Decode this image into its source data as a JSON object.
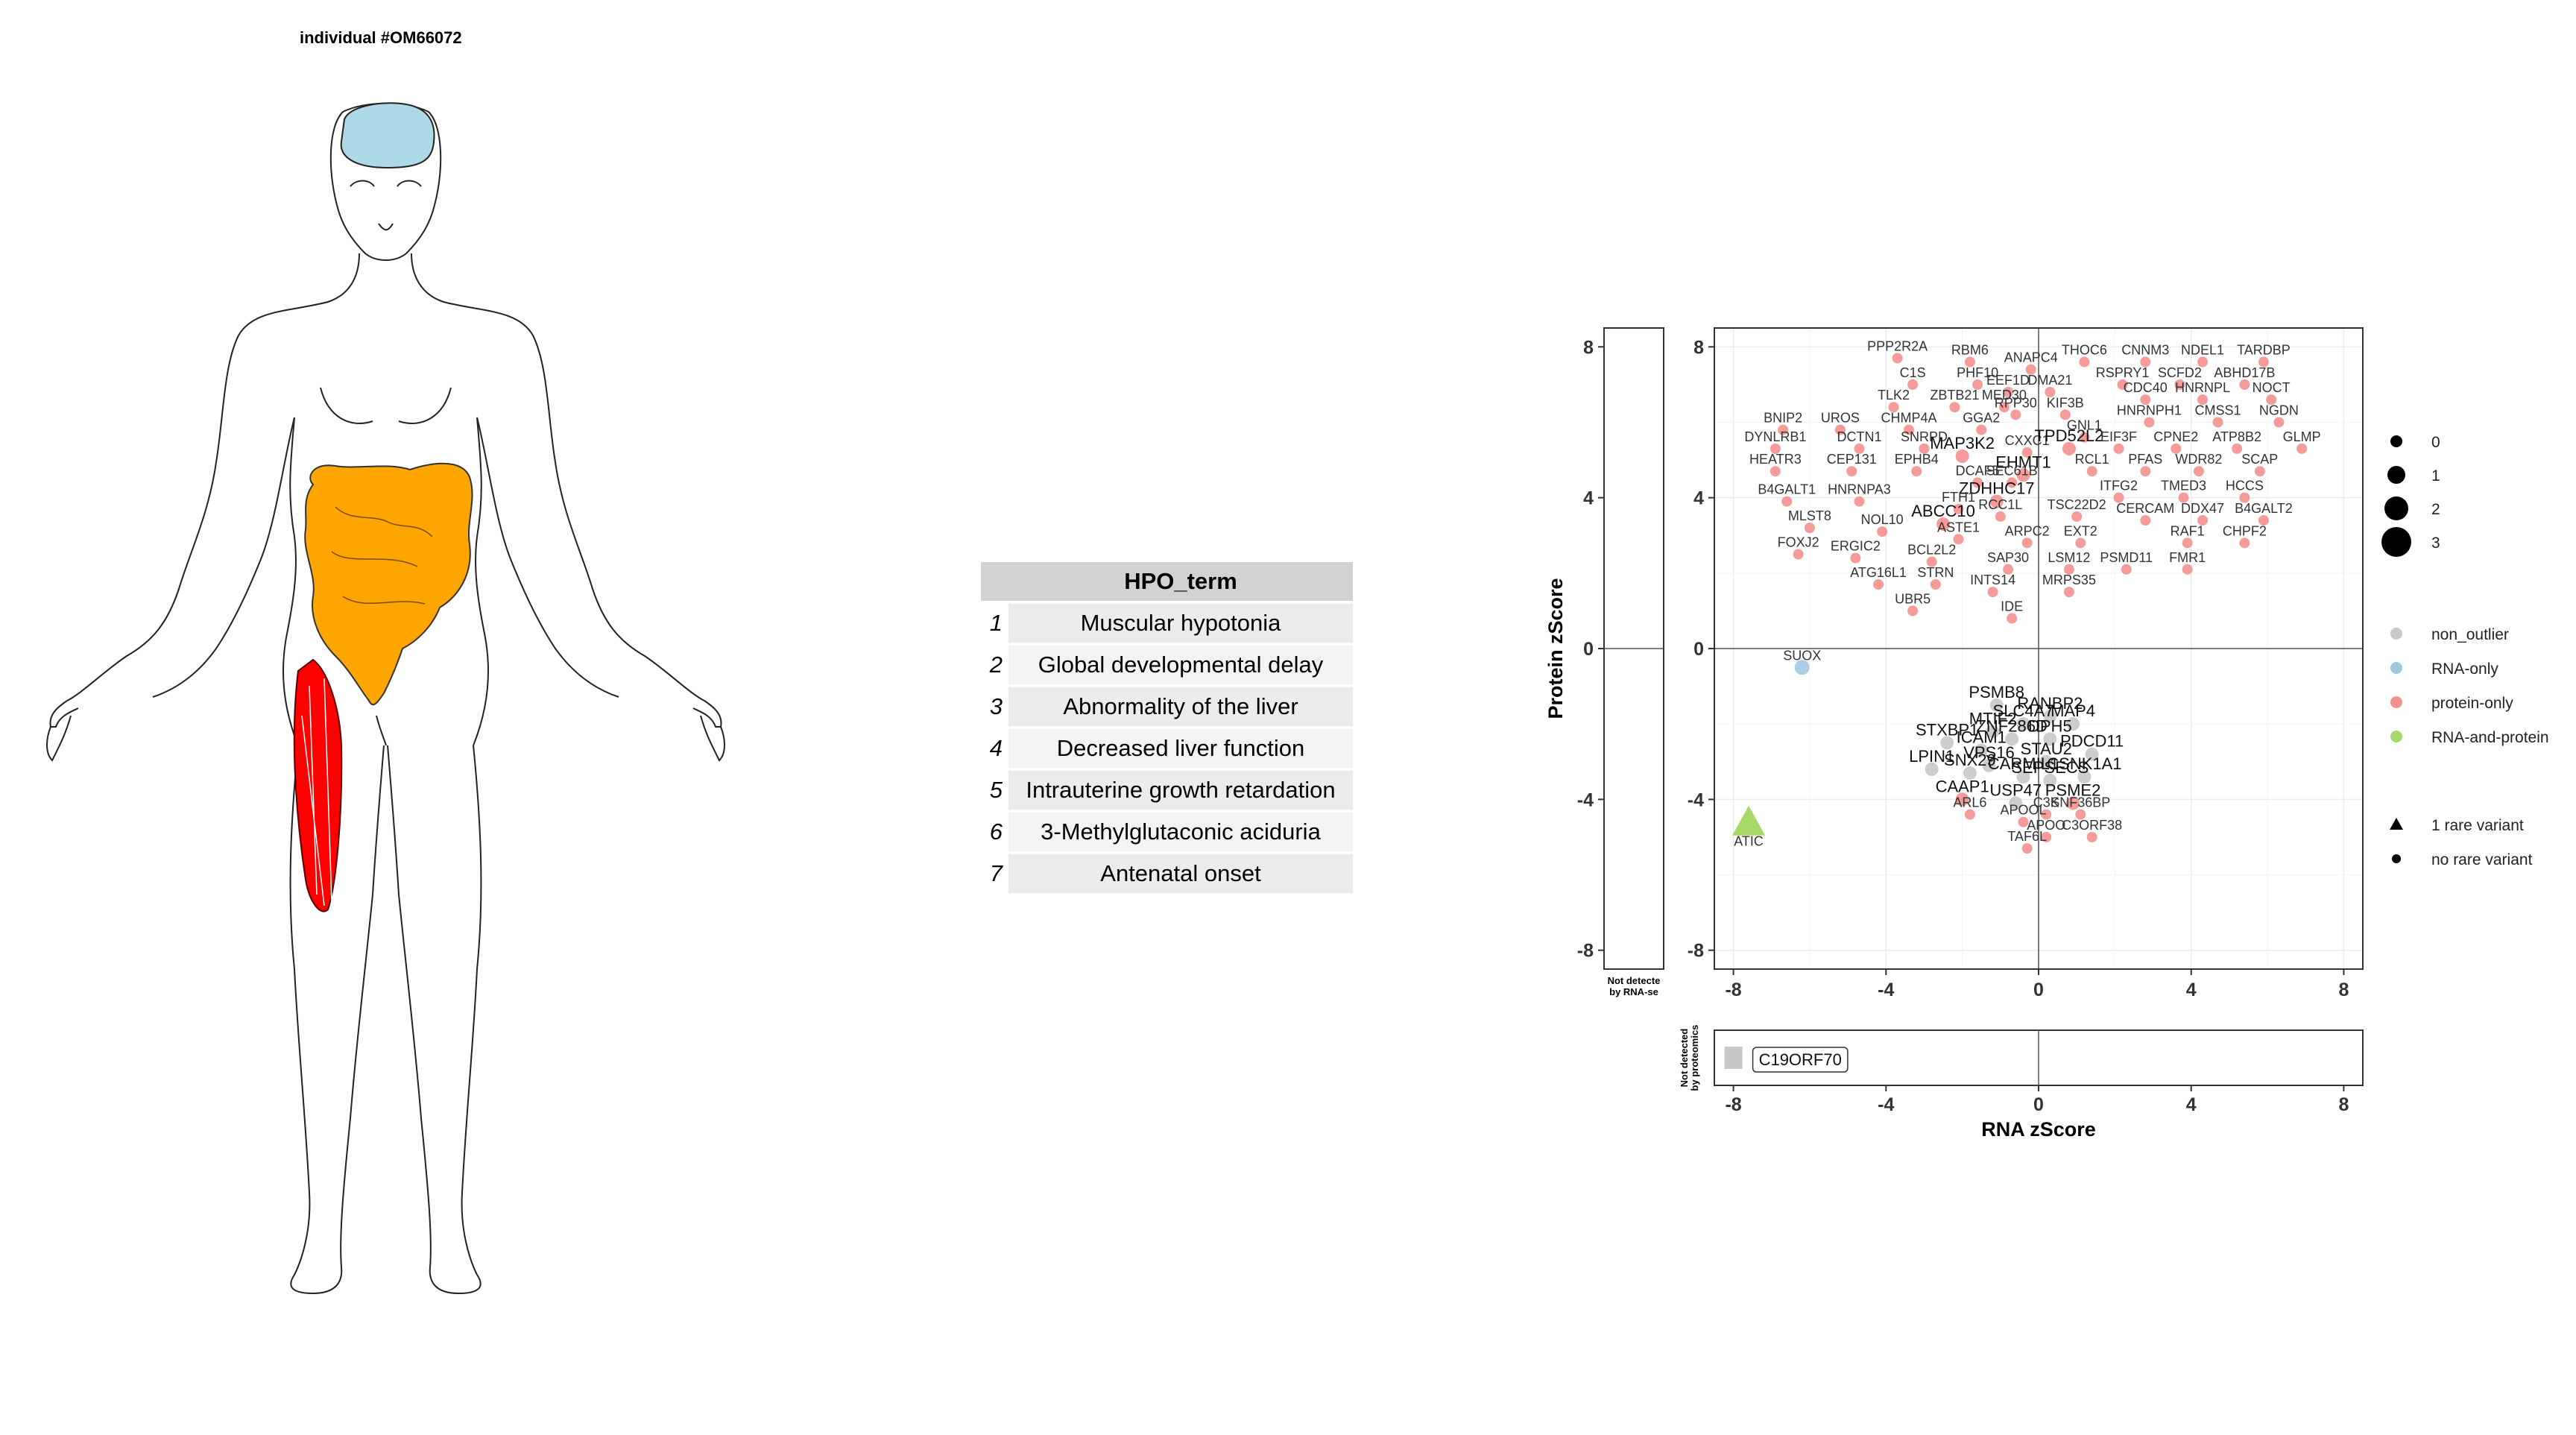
{
  "individual_title": "individual #OM66072",
  "hpo_table": {
    "header": "HPO_term",
    "rows": [
      {
        "index": "1",
        "term": "Muscular hypotonia"
      },
      {
        "index": "2",
        "term": "Global developmental delay"
      },
      {
        "index": "3",
        "term": "Abnormality of the liver"
      },
      {
        "index": "4",
        "term": "Decreased liver function"
      },
      {
        "index": "5",
        "term": "Intrauterine growth retardation"
      },
      {
        "index": "6",
        "term": "3-Methylglutaconic aciduria"
      },
      {
        "index": "7",
        "term": "Antenatal onset"
      }
    ]
  },
  "colors": {
    "brain": "#add8e6",
    "intestine": "#ffa500",
    "muscle": "#ff0000",
    "non_outlier": "#c8c8c8",
    "rna_only": "#9ecae1",
    "protein_only": "#f4908e",
    "rna_and_protein": "#a6d96a"
  },
  "chart_data": {
    "type": "scatter",
    "xlabel": "RNA zScore",
    "ylabel": "Protein zScore",
    "xlim": [
      -8.5,
      8.5
    ],
    "ylim": [
      -8.5,
      8.5
    ],
    "xticks": [
      "-8",
      "-4",
      "0",
      "4",
      "8"
    ],
    "yticks": [
      "8",
      "4",
      "0",
      "-4",
      "-8"
    ],
    "not_detected_rna_label": [
      "Not detecte",
      "by RNA-se"
    ],
    "not_detected_prot_label": [
      "Not detected",
      "by proteomics"
    ],
    "legend_size": {
      "items": [
        "0",
        "1",
        "2",
        "3"
      ]
    },
    "legend_color": {
      "items": [
        "non_outlier",
        "RNA-only",
        "protein-only",
        "RNA-and-protein"
      ]
    },
    "legend_shape": {
      "items": [
        "1 rare variant",
        "no rare variant"
      ]
    },
    "not_detected_proteomics_point": {
      "label": "C19ORF70",
      "x": -8.0
    },
    "points": [
      {
        "label": "PPP2R2A",
        "x": -3.7,
        "y": 7.7,
        "cat": "protein-only"
      },
      {
        "label": "RBM6",
        "x": -1.8,
        "y": 7.6,
        "cat": "protein-only"
      },
      {
        "label": "ANAPC4",
        "x": -0.2,
        "y": 7.4,
        "cat": "protein-only"
      },
      {
        "label": "THOC6",
        "x": 1.2,
        "y": 7.6,
        "cat": "protein-only"
      },
      {
        "label": "CNNM3",
        "x": 2.8,
        "y": 7.6,
        "cat": "protein-only"
      },
      {
        "label": "NDEL1",
        "x": 4.3,
        "y": 7.6,
        "cat": "protein-only"
      },
      {
        "label": "TARDBP",
        "x": 5.9,
        "y": 7.6,
        "cat": "protein-only"
      },
      {
        "label": "C1S",
        "x": -3.3,
        "y": 7.0,
        "cat": "protein-only"
      },
      {
        "label": "PHF10",
        "x": -1.6,
        "y": 7.0,
        "cat": "protein-only"
      },
      {
        "label": "EEF1D",
        "x": -0.8,
        "y": 6.8,
        "cat": "protein-only"
      },
      {
        "label": "DMA21",
        "x": 0.3,
        "y": 6.8,
        "cat": "protein-only"
      },
      {
        "label": "RSPRY1",
        "x": 2.2,
        "y": 7.0,
        "cat": "protein-only"
      },
      {
        "label": "SCFD2",
        "x": 3.7,
        "y": 7.0,
        "cat": "protein-only"
      },
      {
        "label": "ABHD17B",
        "x": 5.4,
        "y": 7.0,
        "cat": "protein-only"
      },
      {
        "label": "TLK2",
        "x": -3.8,
        "y": 6.4,
        "cat": "protein-only"
      },
      {
        "label": "ZBTB21",
        "x": -2.2,
        "y": 6.4,
        "cat": "protein-only"
      },
      {
        "label": "MED30",
        "x": -0.9,
        "y": 6.4,
        "cat": "protein-only"
      },
      {
        "label": "RPP30",
        "x": -0.6,
        "y": 6.2,
        "cat": "protein-only"
      },
      {
        "label": "KIF3B",
        "x": 0.7,
        "y": 6.2,
        "cat": "protein-only"
      },
      {
        "label": "CDC40",
        "x": 2.8,
        "y": 6.6,
        "cat": "protein-only"
      },
      {
        "label": "HNRNPL",
        "x": 4.3,
        "y": 6.6,
        "cat": "protein-only"
      },
      {
        "label": "NOCT",
        "x": 6.1,
        "y": 6.6,
        "cat": "protein-only"
      },
      {
        "label": "BNIP2",
        "x": -6.7,
        "y": 5.8,
        "cat": "protein-only"
      },
      {
        "label": "UROS",
        "x": -5.2,
        "y": 5.8,
        "cat": "protein-only"
      },
      {
        "label": "CHMP4A",
        "x": -3.4,
        "y": 5.8,
        "cat": "protein-only"
      },
      {
        "label": "GGA2",
        "x": -1.5,
        "y": 5.8,
        "cat": "protein-only"
      },
      {
        "label": "GNL1",
        "x": 1.2,
        "y": 5.6,
        "cat": "protein-only"
      },
      {
        "label": "HNRNPH1",
        "x": 2.9,
        "y": 6.0,
        "cat": "protein-only"
      },
      {
        "label": "CMSS1",
        "x": 4.7,
        "y": 6.0,
        "cat": "protein-only"
      },
      {
        "label": "NGDN",
        "x": 6.3,
        "y": 6.0,
        "cat": "protein-only"
      },
      {
        "label": "DYNLRB1",
        "x": -6.9,
        "y": 5.3,
        "cat": "protein-only"
      },
      {
        "label": "DCTN1",
        "x": -4.7,
        "y": 5.3,
        "cat": "protein-only"
      },
      {
        "label": "SNRPD",
        "x": -3.0,
        "y": 5.3,
        "cat": "protein-only"
      },
      {
        "label": "MAP3K2",
        "x": -2.0,
        "y": 5.1,
        "cat": "protein-only",
        "big": true
      },
      {
        "label": "CXXC1",
        "x": -0.3,
        "y": 5.2,
        "cat": "protein-only"
      },
      {
        "label": "TPD52L2",
        "x": 0.8,
        "y": 5.3,
        "cat": "protein-only",
        "big": true
      },
      {
        "label": "EIF3F",
        "x": 2.1,
        "y": 5.3,
        "cat": "protein-only"
      },
      {
        "label": "CPNE2",
        "x": 3.6,
        "y": 5.3,
        "cat": "protein-only"
      },
      {
        "label": "ATP8B2",
        "x": 5.2,
        "y": 5.3,
        "cat": "protein-only"
      },
      {
        "label": "GLMP",
        "x": 6.9,
        "y": 5.3,
        "cat": "protein-only"
      },
      {
        "label": "HEATR3",
        "x": -6.9,
        "y": 4.7,
        "cat": "protein-only"
      },
      {
        "label": "CEP131",
        "x": -4.9,
        "y": 4.7,
        "cat": "protein-only"
      },
      {
        "label": "EPHB4",
        "x": -3.2,
        "y": 4.7,
        "cat": "protein-only"
      },
      {
        "label": "EHMT1",
        "x": -0.4,
        "y": 4.6,
        "cat": "protein-only",
        "big": true
      },
      {
        "label": "RCL1",
        "x": 1.4,
        "y": 4.7,
        "cat": "protein-only"
      },
      {
        "label": "PFAS",
        "x": 2.8,
        "y": 4.7,
        "cat": "protein-only"
      },
      {
        "label": "WDR82",
        "x": 4.2,
        "y": 4.7,
        "cat": "protein-only"
      },
      {
        "label": "SCAP",
        "x": 5.8,
        "y": 4.7,
        "cat": "protein-only"
      },
      {
        "label": "DCAF5",
        "x": -1.6,
        "y": 4.4,
        "cat": "protein-only"
      },
      {
        "label": "SEC61B",
        "x": -0.7,
        "y": 4.4,
        "cat": "protein-only"
      },
      {
        "label": "ITFG2",
        "x": 2.1,
        "y": 4.0,
        "cat": "protein-only"
      },
      {
        "label": "TMED3",
        "x": 3.8,
        "y": 4.0,
        "cat": "protein-only"
      },
      {
        "label": "HCCS",
        "x": 5.4,
        "y": 4.0,
        "cat": "protein-only"
      },
      {
        "label": "B4GALT1",
        "x": -6.6,
        "y": 3.9,
        "cat": "protein-only"
      },
      {
        "label": "HNRNPA3",
        "x": -4.7,
        "y": 3.9,
        "cat": "protein-only"
      },
      {
        "label": "ZDHHC17",
        "x": -1.1,
        "y": 3.9,
        "cat": "protein-only",
        "big": true
      },
      {
        "label": "FTH1",
        "x": -2.1,
        "y": 3.7,
        "cat": "protein-only"
      },
      {
        "label": "RCC1L",
        "x": -1.0,
        "y": 3.5,
        "cat": "protein-only"
      },
      {
        "label": "TSC22D2",
        "x": 1.0,
        "y": 3.5,
        "cat": "protein-only"
      },
      {
        "label": "CERCAM",
        "x": 2.8,
        "y": 3.4,
        "cat": "protein-only"
      },
      {
        "label": "DDX47",
        "x": 4.3,
        "y": 3.4,
        "cat": "protein-only"
      },
      {
        "label": "B4GALT2",
        "x": 5.9,
        "y": 3.4,
        "cat": "protein-only"
      },
      {
        "label": "MLST8",
        "x": -6.0,
        "y": 3.2,
        "cat": "protein-only"
      },
      {
        "label": "NOL10",
        "x": -4.1,
        "y": 3.1,
        "cat": "protein-only"
      },
      {
        "label": "ABCC10",
        "x": -2.5,
        "y": 3.3,
        "cat": "protein-only",
        "big": true
      },
      {
        "label": "ASTE1",
        "x": -2.1,
        "y": 2.9,
        "cat": "protein-only"
      },
      {
        "label": "ARPC2",
        "x": -0.3,
        "y": 2.8,
        "cat": "protein-only"
      },
      {
        "label": "EXT2",
        "x": 1.1,
        "y": 2.8,
        "cat": "protein-only"
      },
      {
        "label": "RAF1",
        "x": 3.9,
        "y": 2.8,
        "cat": "protein-only"
      },
      {
        "label": "CHPF2",
        "x": 5.4,
        "y": 2.8,
        "cat": "protein-only"
      },
      {
        "label": "FOXJ2",
        "x": -6.3,
        "y": 2.5,
        "cat": "protein-only"
      },
      {
        "label": "ERGIC2",
        "x": -4.8,
        "y": 2.4,
        "cat": "protein-only"
      },
      {
        "label": "BCL2L2",
        "x": -2.8,
        "y": 2.3,
        "cat": "protein-only"
      },
      {
        "label": "SAP30",
        "x": -0.8,
        "y": 2.1,
        "cat": "protein-only"
      },
      {
        "label": "LSM12",
        "x": 0.8,
        "y": 2.1,
        "cat": "protein-only"
      },
      {
        "label": "PSMD11",
        "x": 2.3,
        "y": 2.1,
        "cat": "protein-only"
      },
      {
        "label": "FMR1",
        "x": 3.9,
        "y": 2.1,
        "cat": "protein-only"
      },
      {
        "label": "ATG16L1",
        "x": -4.2,
        "y": 1.7,
        "cat": "protein-only"
      },
      {
        "label": "STRN",
        "x": -2.7,
        "y": 1.7,
        "cat": "protein-only"
      },
      {
        "label": "INTS14",
        "x": -1.2,
        "y": 1.5,
        "cat": "protein-only"
      },
      {
        "label": "MRPS35",
        "x": 0.8,
        "y": 1.5,
        "cat": "protein-only"
      },
      {
        "label": "UBR5",
        "x": -3.3,
        "y": 1.0,
        "cat": "protein-only"
      },
      {
        "label": "IDE",
        "x": -0.7,
        "y": 0.8,
        "cat": "protein-only"
      },
      {
        "label": "SUOX",
        "x": -6.2,
        "y": -0.5,
        "cat": "RNA-only",
        "size": 1
      },
      {
        "label": "PSMB8",
        "x": -1.1,
        "y": -1.5,
        "cat": "non_outlier",
        "big": true
      },
      {
        "label": "SLC4A7",
        "x": -0.4,
        "y": -2.0,
        "cat": "non_outlier",
        "big": true
      },
      {
        "label": "RANBP2",
        "x": 0.3,
        "y": -1.8,
        "cat": "non_outlier",
        "big": true
      },
      {
        "label": "MTIF2",
        "x": -1.2,
        "y": -2.2,
        "cat": "non_outlier",
        "big": true
      },
      {
        "label": "ZNF286D",
        "x": -0.7,
        "y": -2.4,
        "cat": "non_outlier",
        "big": true
      },
      {
        "label": "ICAM1",
        "x": -1.5,
        "y": -2.7,
        "cat": "non_outlier",
        "big": true
      },
      {
        "label": "DPH5",
        "x": 0.3,
        "y": -2.4,
        "cat": "non_outlier",
        "big": true
      },
      {
        "label": "MAP4",
        "x": 0.9,
        "y": -2.0,
        "cat": "non_outlier",
        "big": true
      },
      {
        "label": "STXBP1",
        "x": -2.4,
        "y": -2.5,
        "cat": "non_outlier",
        "big": true
      },
      {
        "label": "VPS16",
        "x": -1.3,
        "y": -3.1,
        "cat": "non_outlier",
        "big": true
      },
      {
        "label": "STAU2",
        "x": 0.2,
        "y": -3.0,
        "cat": "non_outlier",
        "big": true
      },
      {
        "label": "PDCD11",
        "x": 1.4,
        "y": -2.8,
        "cat": "non_outlier",
        "big": true
      },
      {
        "label": "LPIN1",
        "x": -2.8,
        "y": -3.2,
        "cat": "non_outlier",
        "big": true
      },
      {
        "label": "SNX29",
        "x": -1.8,
        "y": -3.3,
        "cat": "non_outlier",
        "big": true
      },
      {
        "label": "CARMIL1",
        "x": -0.4,
        "y": -3.4,
        "cat": "non_outlier",
        "big": true
      },
      {
        "label": "SEPSECS",
        "x": 0.3,
        "y": -3.5,
        "cat": "non_outlier",
        "big": true
      },
      {
        "label": "CSNK1A1",
        "x": 1.2,
        "y": -3.4,
        "cat": "non_outlier",
        "big": true
      },
      {
        "label": "CAAP1",
        "x": -2.0,
        "y": -4.0,
        "cat": "protein-only",
        "big": true
      },
      {
        "label": "USP47",
        "x": -0.6,
        "y": -4.1,
        "cat": "non_outlier",
        "big": true
      },
      {
        "label": "PSME2",
        "x": 0.9,
        "y": -4.1,
        "cat": "protein-only",
        "big": true
      },
      {
        "label": "ARL6",
        "x": -1.8,
        "y": -4.4,
        "cat": "protein-only"
      },
      {
        "label": "APOOL",
        "x": -0.4,
        "y": -4.6,
        "cat": "protein-only"
      },
      {
        "label": "C3K",
        "x": 0.2,
        "y": -4.4,
        "cat": "protein-only"
      },
      {
        "label": "SNF36BP",
        "x": 1.1,
        "y": -4.4,
        "cat": "protein-only"
      },
      {
        "label": "APOO",
        "x": 0.2,
        "y": -5.0,
        "cat": "protein-only"
      },
      {
        "label": "C3ORF38",
        "x": 1.4,
        "y": -5.0,
        "cat": "protein-only"
      },
      {
        "label": "TAF6L",
        "x": -0.3,
        "y": -5.3,
        "cat": "protein-only"
      },
      {
        "label": "ATIC",
        "x": -7.6,
        "y": -4.6,
        "cat": "RNA-and-protein",
        "size": 3,
        "shape": "triangle"
      }
    ]
  }
}
